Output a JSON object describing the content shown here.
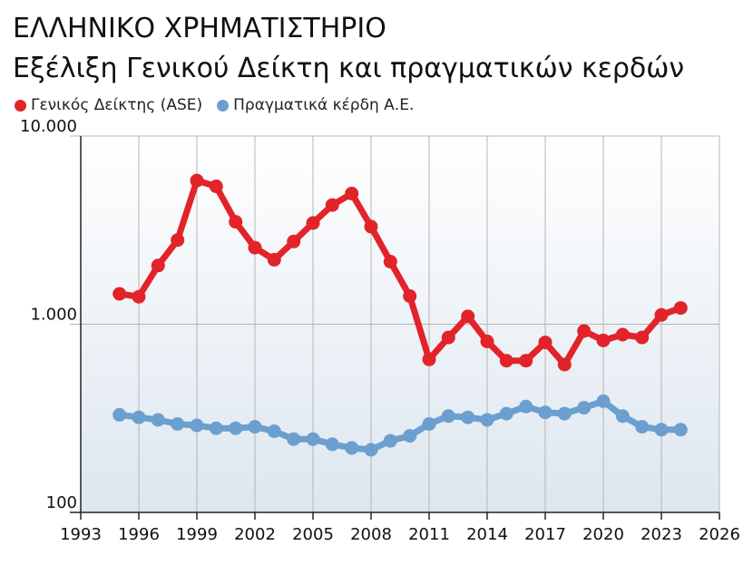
{
  "title": "ΕΛΛΗΝΙΚΟ ΧΡΗΜΑΤΙΣΤΗΡΙΟ",
  "subtitle": "Εξέλιξη Γενικού Δείκτη και πραγματικών κερδών",
  "chart_data": {
    "type": "line",
    "title": "ΕΛΛΗΝΙΚΟ ΧΡΗΜΑΤΙΣΤΗΡΙΟ",
    "subtitle": "Εξέλιξη Γενικού Δείκτη και πραγματικών κερδών",
    "xlabel": "",
    "ylabel": "",
    "y_scale": "log",
    "ylim": [
      100,
      10000
    ],
    "xlim": [
      1993,
      2026
    ],
    "y_ticks": [
      {
        "value": 10000,
        "label": "10.000"
      },
      {
        "value": 1000,
        "label": "1.000"
      },
      {
        "value": 100,
        "label": "100"
      }
    ],
    "x_ticks": [
      {
        "value": 1993,
        "label": "1993"
      },
      {
        "value": 1996,
        "label": "1996"
      },
      {
        "value": 1999,
        "label": "1999"
      },
      {
        "value": 2002,
        "label": "2002"
      },
      {
        "value": 2005,
        "label": "2005"
      },
      {
        "value": 2008,
        "label": "2008"
      },
      {
        "value": 2011,
        "label": "2011"
      },
      {
        "value": 2014,
        "label": "2014"
      },
      {
        "value": 2017,
        "label": "2017"
      },
      {
        "value": 2020,
        "label": "2020"
      },
      {
        "value": 2023,
        "label": "2023"
      },
      {
        "value": 2026,
        "label": "2026"
      }
    ],
    "grid": true,
    "legend_position": "top-left",
    "x": [
      1995,
      1996,
      1997,
      1998,
      1999,
      2000,
      2001,
      2002,
      2003,
      2004,
      2005,
      2006,
      2007,
      2008,
      2009,
      2010,
      2011,
      2012,
      2013,
      2014,
      2015,
      2016,
      2017,
      2018,
      2019,
      2020,
      2021,
      2022,
      2023,
      2024
    ],
    "series": [
      {
        "name": "Γενικός Δείκτης (ASE)",
        "color": "#e2232a",
        "values": [
          1450,
          1400,
          2050,
          2800,
          5800,
          5400,
          3500,
          2550,
          2200,
          2750,
          3450,
          4300,
          4950,
          3300,
          2150,
          1410,
          650,
          850,
          1100,
          810,
          640,
          640,
          800,
          610,
          920,
          820,
          880,
          850,
          1120,
          1220
        ]
      },
      {
        "name": "Πραγματικά κέρδη Α.Ε.",
        "color": "#6b9fcf",
        "values": [
          330,
          320,
          310,
          295,
          290,
          280,
          280,
          285,
          270,
          245,
          245,
          230,
          220,
          215,
          240,
          255,
          295,
          325,
          320,
          310,
          335,
          365,
          340,
          335,
          360,
          390,
          325,
          285,
          275,
          275
        ]
      }
    ]
  },
  "colors": {
    "plot_bg_top": "#ffffff",
    "plot_bg_bottom": "#dde6ef",
    "grid": "#b5b5b5",
    "axis": "#222222"
  }
}
